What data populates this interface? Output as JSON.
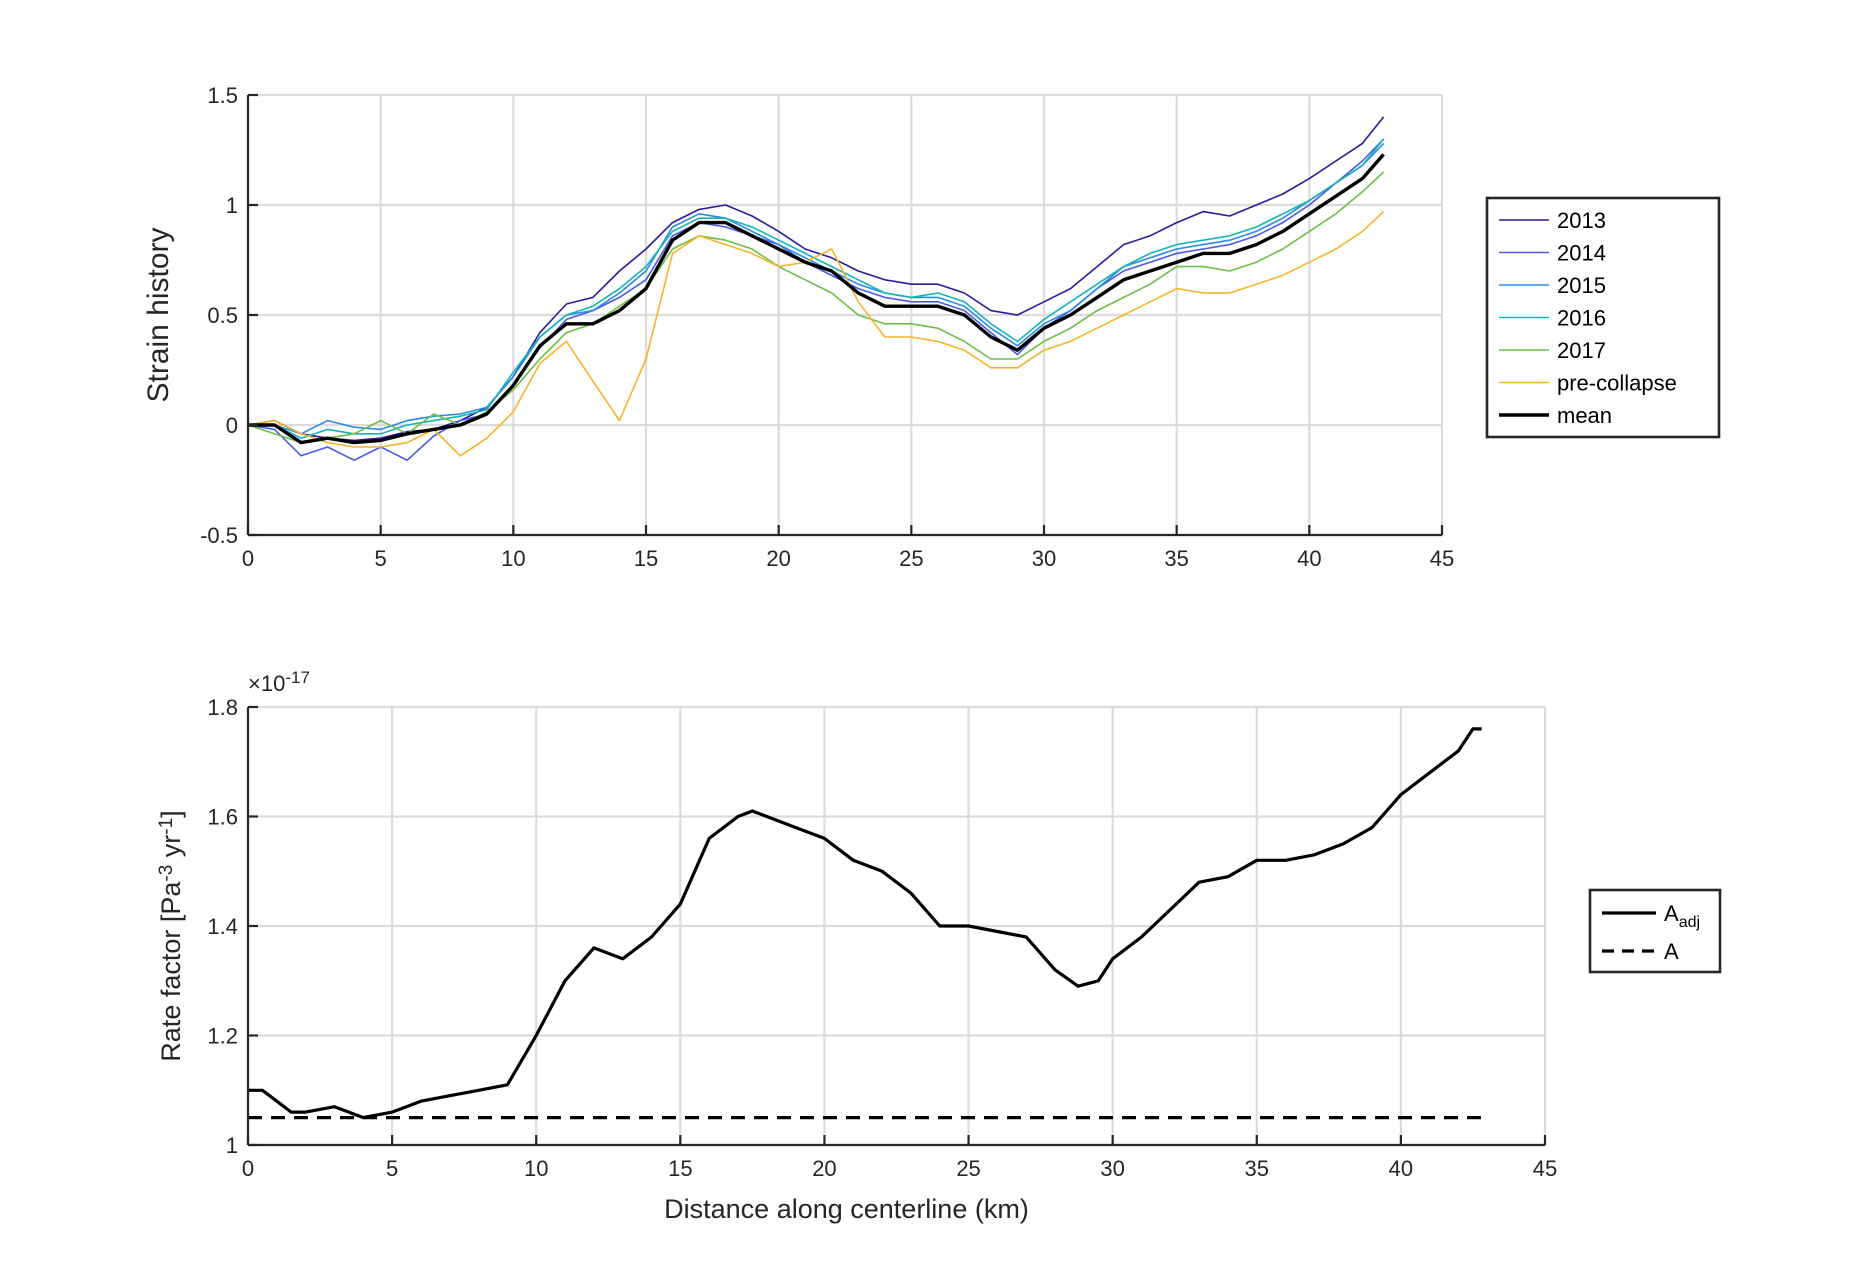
{
  "colors": {
    "c2013": "#2d1a9c",
    "c2014": "#4a5be8",
    "c2015": "#2a8ce6",
    "c2016": "#16b3b8",
    "c2017": "#6cc04a",
    "cpre": "#f5b42c",
    "cmean": "#000000"
  },
  "chart_data": [
    {
      "type": "line",
      "xlabel": "",
      "ylabel": "Strain history",
      "xlim": [
        0,
        45
      ],
      "ylim": [
        -0.5,
        1.5
      ],
      "xticks": [
        0,
        5,
        10,
        15,
        20,
        25,
        30,
        35,
        40,
        45
      ],
      "yticks": [
        -0.5,
        0,
        0.5,
        1,
        1.5
      ],
      "xtick_labels": [
        "0",
        "5",
        "10",
        "15",
        "20",
        "25",
        "30",
        "35",
        "40",
        "45"
      ],
      "ytick_labels": [
        "-0.5",
        "0",
        "0.5",
        "1",
        "1.5"
      ],
      "grid": true,
      "legend_position": "right",
      "x": [
        0,
        1,
        2,
        3,
        4,
        5,
        6,
        7,
        8,
        9,
        10,
        11,
        12,
        13,
        14,
        15,
        16,
        17,
        18,
        19,
        20,
        21,
        22,
        23,
        24,
        25,
        26,
        27,
        28,
        29,
        30,
        31,
        32,
        33,
        34,
        35,
        36,
        37,
        38,
        39,
        40,
        41,
        42,
        42.8
      ],
      "series": [
        {
          "name": "2013",
          "color": "#2d1a9c",
          "width": 1.6,
          "values": [
            0,
            0.02,
            -0.04,
            -0.06,
            -0.07,
            -0.06,
            -0.03,
            -0.02,
            0.02,
            0.08,
            0.22,
            0.42,
            0.55,
            0.58,
            0.7,
            0.8,
            0.92,
            0.98,
            1.0,
            0.95,
            0.88,
            0.8,
            0.76,
            0.7,
            0.66,
            0.64,
            0.64,
            0.6,
            0.52,
            0.5,
            0.56,
            0.62,
            0.72,
            0.82,
            0.86,
            0.92,
            0.97,
            0.95,
            1.0,
            1.05,
            1.12,
            1.2,
            1.28,
            1.4
          ]
        },
        {
          "name": "2014",
          "color": "#4a5be8",
          "width": 1.6,
          "values": [
            0,
            -0.02,
            -0.14,
            -0.1,
            -0.16,
            -0.1,
            -0.16,
            -0.05,
            0.02,
            0.05,
            0.18,
            0.35,
            0.48,
            0.52,
            0.58,
            0.66,
            0.86,
            0.92,
            0.9,
            0.86,
            0.82,
            0.74,
            0.68,
            0.62,
            0.58,
            0.56,
            0.56,
            0.52,
            0.42,
            0.32,
            0.44,
            0.52,
            0.62,
            0.7,
            0.74,
            0.78,
            0.8,
            0.82,
            0.86,
            0.92,
            1.0,
            1.1,
            1.2,
            1.3
          ]
        },
        {
          "name": "2015",
          "color": "#2a8ce6",
          "width": 1.6,
          "values": [
            0,
            0.0,
            -0.04,
            0.02,
            -0.01,
            -0.02,
            0.02,
            0.04,
            0.05,
            0.08,
            0.22,
            0.4,
            0.5,
            0.52,
            0.6,
            0.7,
            0.9,
            0.96,
            0.94,
            0.88,
            0.82,
            0.76,
            0.7,
            0.64,
            0.6,
            0.58,
            0.58,
            0.54,
            0.44,
            0.36,
            0.46,
            0.52,
            0.62,
            0.72,
            0.76,
            0.8,
            0.82,
            0.84,
            0.88,
            0.94,
            1.02,
            1.1,
            1.18,
            1.28
          ]
        },
        {
          "name": "2016",
          "color": "#16b3b8",
          "width": 1.6,
          "values": [
            0,
            0.0,
            -0.06,
            -0.02,
            -0.04,
            -0.04,
            0.0,
            0.02,
            0.04,
            0.07,
            0.24,
            0.4,
            0.5,
            0.54,
            0.62,
            0.72,
            0.88,
            0.94,
            0.94,
            0.9,
            0.84,
            0.78,
            0.72,
            0.66,
            0.6,
            0.58,
            0.6,
            0.56,
            0.46,
            0.38,
            0.48,
            0.56,
            0.64,
            0.72,
            0.78,
            0.82,
            0.84,
            0.86,
            0.9,
            0.96,
            1.02,
            1.1,
            1.18,
            1.3
          ]
        },
        {
          "name": "2017",
          "color": "#6cc04a",
          "width": 1.6,
          "values": [
            0,
            -0.04,
            -0.08,
            -0.06,
            -0.04,
            0.02,
            -0.04,
            0.05,
            0.0,
            0.06,
            0.16,
            0.3,
            0.42,
            0.46,
            0.54,
            0.62,
            0.8,
            0.86,
            0.84,
            0.8,
            0.72,
            0.66,
            0.6,
            0.5,
            0.46,
            0.46,
            0.44,
            0.38,
            0.3,
            0.3,
            0.38,
            0.44,
            0.52,
            0.58,
            0.64,
            0.72,
            0.72,
            0.7,
            0.74,
            0.8,
            0.88,
            0.96,
            1.06,
            1.15
          ]
        },
        {
          "name": "pre-collapse",
          "color": "#f5b42c",
          "width": 1.6,
          "values": [
            0,
            0.02,
            -0.04,
            -0.08,
            -0.1,
            -0.1,
            -0.08,
            -0.02,
            -0.14,
            -0.06,
            0.06,
            0.28,
            0.38,
            0.2,
            0.02,
            0.3,
            0.78,
            0.86,
            0.82,
            0.78,
            0.72,
            0.74,
            0.8,
            0.56,
            0.4,
            0.4,
            0.38,
            0.34,
            0.26,
            0.26,
            0.34,
            0.38,
            0.44,
            0.5,
            0.56,
            0.62,
            0.6,
            0.6,
            0.64,
            0.68,
            0.74,
            0.8,
            0.88,
            0.97
          ]
        },
        {
          "name": "mean",
          "color": "#000000",
          "width": 3.4,
          "values": [
            0,
            0.0,
            -0.08,
            -0.06,
            -0.08,
            -0.07,
            -0.04,
            -0.02,
            0.0,
            0.05,
            0.18,
            0.36,
            0.46,
            0.46,
            0.52,
            0.62,
            0.84,
            0.92,
            0.92,
            0.86,
            0.8,
            0.74,
            0.7,
            0.6,
            0.54,
            0.54,
            0.54,
            0.5,
            0.4,
            0.34,
            0.44,
            0.5,
            0.58,
            0.66,
            0.7,
            0.74,
            0.78,
            0.78,
            0.82,
            0.88,
            0.96,
            1.04,
            1.12,
            1.23
          ]
        }
      ]
    },
    {
      "type": "line",
      "xlabel": "Distance along centerline (km)",
      "ylabel": "Rate factor [Pa",
      "ylabel_sup1": "-3",
      "ylabel_mid": " yr",
      "ylabel_sup2": "-1",
      "ylabel_end": "]",
      "exponent_label": "×10",
      "exponent_power": "-17",
      "xlim": [
        0,
        45
      ],
      "ylim": [
        1.0,
        1.8
      ],
      "xticks": [
        0,
        5,
        10,
        15,
        20,
        25,
        30,
        35,
        40,
        45
      ],
      "yticks": [
        1.0,
        1.2,
        1.4,
        1.6,
        1.8
      ],
      "xtick_labels": [
        "0",
        "5",
        "10",
        "15",
        "20",
        "25",
        "30",
        "35",
        "40",
        "45"
      ],
      "ytick_labels": [
        "1",
        "1.2",
        "1.4",
        "1.6",
        "1.8"
      ],
      "grid": true,
      "legend_position": "right",
      "x": [
        0,
        0.5,
        1,
        1.5,
        2,
        3,
        4,
        5,
        6,
        7,
        8,
        9,
        10,
        11,
        12,
        13,
        14,
        15,
        16,
        17,
        17.5,
        18,
        19,
        20,
        21,
        22,
        23,
        24,
        25,
        26,
        27,
        28,
        28.8,
        29.5,
        30,
        31,
        32,
        33,
        34,
        35,
        36,
        37,
        38,
        39,
        40,
        41,
        42,
        42.5,
        42.8
      ],
      "series": [
        {
          "name": "A",
          "sub": "adj",
          "color": "#000000",
          "style": "solid",
          "values": [
            1.1,
            1.1,
            1.08,
            1.06,
            1.06,
            1.07,
            1.05,
            1.06,
            1.08,
            1.09,
            1.1,
            1.11,
            1.2,
            1.3,
            1.36,
            1.34,
            1.38,
            1.44,
            1.56,
            1.6,
            1.61,
            1.6,
            1.58,
            1.56,
            1.52,
            1.5,
            1.46,
            1.4,
            1.4,
            1.39,
            1.38,
            1.32,
            1.29,
            1.3,
            1.34,
            1.38,
            1.43,
            1.48,
            1.49,
            1.52,
            1.52,
            1.53,
            1.55,
            1.58,
            1.64,
            1.68,
            1.72,
            1.76,
            1.76
          ]
        },
        {
          "name": "A",
          "sub": "",
          "color": "#000000",
          "style": "dashed",
          "x": [
            0,
            43
          ],
          "values": [
            1.05,
            1.05
          ]
        }
      ]
    }
  ]
}
